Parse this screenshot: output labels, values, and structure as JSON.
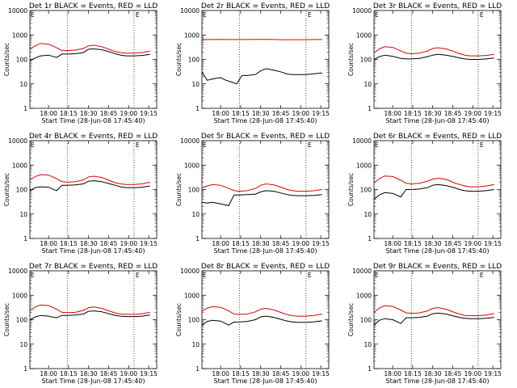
{
  "start_time_label": "Start Time (28-Jun-08 17:45:40)",
  "ylabel": "Counts/sec",
  "x_ticks": [
    "18:00",
    "18:15",
    "18:30",
    "18:45",
    "19:00",
    "19:15"
  ],
  "x_ticks_note": "tick labels for time axis; minutes after start",
  "y_ticks": [
    "1",
    "10",
    "100",
    "1000",
    "10000"
  ],
  "colors": {
    "events": "#000000",
    "lld": "#dd0000"
  },
  "chart_data": [
    {
      "type": "line",
      "title": "Det 1r BLACK = Events, RED = LLD",
      "xlabel": "Start Time (28-Jun-08 17:45:40)",
      "ylabel": "Counts/sec",
      "ylim": [
        1,
        10000
      ],
      "yscale": "log",
      "x_minutes": [
        0,
        4,
        8,
        14,
        20,
        24,
        28,
        34,
        40,
        44,
        48,
        54,
        60,
        64,
        68,
        72,
        78,
        84,
        90
      ],
      "series": [
        {
          "name": "BLACK = Events",
          "values": [
            90,
            115,
            140,
            150,
            120,
            165,
            165,
            170,
            190,
            260,
            270,
            250,
            200,
            170,
            150,
            140,
            140,
            145,
            160
          ]
        },
        {
          "name": "RED = LLD",
          "values": [
            260,
            360,
            450,
            420,
            300,
            230,
            230,
            240,
            280,
            360,
            380,
            330,
            250,
            210,
            190,
            180,
            180,
            190,
            220
          ]
        }
      ]
    },
    {
      "type": "line",
      "title": "Det 2r BLACK = Events, RED = LLD",
      "xlabel": "Start Time (28-Jun-08 17:45:40)",
      "ylabel": "Counts/sec",
      "ylim": [
        1,
        10000
      ],
      "yscale": "log",
      "x_minutes": [
        0,
        4,
        8,
        14,
        18,
        22,
        26,
        30,
        34,
        40,
        44,
        48,
        54,
        60,
        64,
        68,
        72,
        78,
        84,
        90
      ],
      "series": [
        {
          "name": "BLACK = Events",
          "values": [
            30,
            14,
            16,
            18,
            14,
            12,
            10,
            22,
            22,
            24,
            34,
            42,
            36,
            30,
            25,
            24,
            24,
            24,
            26,
            28
          ]
        },
        {
          "name": "RED = LLD",
          "values": [
            640,
            650,
            650,
            660,
            650,
            650,
            650,
            650,
            650,
            660,
            660,
            660,
            650,
            640,
            640,
            640,
            640,
            640,
            650,
            650
          ]
        }
      ]
    },
    {
      "type": "line",
      "title": "Det 3r BLACK = Events, RED = LLD",
      "xlabel": "Start Time (28-Jun-08 17:45:40)",
      "ylabel": "Counts/sec",
      "ylim": [
        1,
        10000
      ],
      "yscale": "log",
      "x_minutes": [
        0,
        4,
        8,
        14,
        20,
        24,
        28,
        34,
        40,
        44,
        48,
        54,
        60,
        64,
        68,
        72,
        78,
        84,
        90
      ],
      "series": [
        {
          "name": "BLACK = Events",
          "values": [
            100,
            130,
            150,
            135,
            110,
            105,
            105,
            110,
            130,
            150,
            160,
            150,
            130,
            115,
            105,
            100,
            100,
            105,
            115
          ]
        },
        {
          "name": "RED = LLD",
          "values": [
            190,
            270,
            330,
            310,
            220,
            180,
            170,
            180,
            220,
            280,
            300,
            270,
            210,
            170,
            150,
            140,
            140,
            145,
            160
          ]
        }
      ]
    },
    {
      "type": "line",
      "title": "Det 4r BLACK = Events, RED = LLD",
      "xlabel": "Start Time (28-Jun-08 17:45:40)",
      "ylabel": "Counts/sec",
      "ylim": [
        1,
        10000
      ],
      "yscale": "log",
      "x_minutes": [
        0,
        4,
        8,
        14,
        20,
        24,
        28,
        34,
        40,
        44,
        48,
        54,
        60,
        64,
        68,
        72,
        78,
        84,
        90
      ],
      "series": [
        {
          "name": "BLACK = Events",
          "values": [
            90,
            120,
            130,
            125,
            90,
            150,
            150,
            155,
            170,
            220,
            230,
            210,
            170,
            150,
            130,
            120,
            120,
            125,
            140
          ]
        },
        {
          "name": "RED = LLD",
          "values": [
            240,
            340,
            410,
            390,
            280,
            210,
            200,
            210,
            250,
            330,
            350,
            310,
            230,
            190,
            170,
            160,
            160,
            170,
            200
          ]
        }
      ]
    },
    {
      "type": "line",
      "title": "Det 5r BLACK = Events, RED = LLD",
      "xlabel": "Start Time (28-Jun-08 17:45:40)",
      "ylabel": "Counts/sec",
      "ylim": [
        1,
        10000
      ],
      "yscale": "log",
      "x_minutes": [
        0,
        4,
        8,
        14,
        20,
        24,
        28,
        34,
        40,
        44,
        48,
        54,
        60,
        64,
        68,
        72,
        78,
        84,
        90
      ],
      "series": [
        {
          "name": "BLACK = Events",
          "values": [
            30,
            28,
            30,
            26,
            22,
            60,
            60,
            62,
            65,
            80,
            90,
            85,
            70,
            62,
            58,
            56,
            56,
            58,
            62
          ]
        },
        {
          "name": "RED = LLD",
          "values": [
            120,
            140,
            160,
            150,
            110,
            90,
            85,
            90,
            110,
            150,
            170,
            155,
            120,
            100,
            90,
            85,
            85,
            90,
            100
          ]
        }
      ]
    },
    {
      "type": "line",
      "title": "Det 6r BLACK = Events, RED = LLD",
      "xlabel": "Start Time (28-Jun-08 17:45:40)",
      "ylabel": "Counts/sec",
      "ylim": [
        1,
        10000
      ],
      "yscale": "log",
      "x_minutes": [
        0,
        4,
        8,
        14,
        20,
        24,
        28,
        34,
        40,
        44,
        48,
        54,
        60,
        64,
        68,
        72,
        78,
        84,
        90
      ],
      "series": [
        {
          "name": "BLACK = Events",
          "values": [
            40,
            60,
            75,
            70,
            50,
            100,
            100,
            105,
            120,
            150,
            160,
            145,
            120,
            100,
            90,
            85,
            85,
            90,
            100
          ]
        },
        {
          "name": "RED = LLD",
          "values": [
            190,
            280,
            360,
            340,
            240,
            180,
            170,
            180,
            220,
            270,
            290,
            260,
            190,
            160,
            140,
            130,
            130,
            140,
            160
          ]
        }
      ]
    },
    {
      "type": "line",
      "title": "Det 7r BLACK = Events, RED = LLD",
      "xlabel": "Start Time (28-Jun-08 17:45:40)",
      "ylabel": "Counts/sec",
      "ylim": [
        1,
        10000
      ],
      "yscale": "log",
      "x_minutes": [
        0,
        4,
        8,
        14,
        20,
        24,
        28,
        34,
        40,
        44,
        48,
        54,
        60,
        64,
        68,
        72,
        78,
        84,
        90
      ],
      "series": [
        {
          "name": "BLACK = Events",
          "values": [
            100,
            130,
            150,
            140,
            120,
            150,
            150,
            155,
            170,
            220,
            230,
            210,
            170,
            150,
            140,
            135,
            135,
            140,
            155
          ]
        },
        {
          "name": "RED = LLD",
          "values": [
            230,
            330,
            400,
            380,
            270,
            200,
            195,
            200,
            240,
            310,
            330,
            290,
            220,
            190,
            170,
            165,
            165,
            175,
            200
          ]
        }
      ]
    },
    {
      "type": "line",
      "title": "Det 8r BLACK = Events, RED = LLD",
      "xlabel": "Start Time (28-Jun-08 17:45:40)",
      "ylabel": "Counts/sec",
      "ylim": [
        1,
        10000
      ],
      "yscale": "log",
      "x_minutes": [
        0,
        4,
        8,
        14,
        20,
        24,
        28,
        34,
        40,
        44,
        48,
        54,
        60,
        64,
        68,
        72,
        78,
        84,
        90
      ],
      "series": [
        {
          "name": "BLACK = Events",
          "values": [
            60,
            85,
            95,
            88,
            60,
            80,
            80,
            85,
            100,
            130,
            140,
            125,
            100,
            88,
            80,
            78,
            78,
            82,
            90
          ]
        },
        {
          "name": "RED = LLD",
          "values": [
            220,
            300,
            340,
            320,
            230,
            170,
            165,
            170,
            210,
            270,
            290,
            250,
            190,
            160,
            145,
            140,
            140,
            150,
            170
          ]
        }
      ]
    },
    {
      "type": "line",
      "title": "Det 9r BLACK = Events, RED = LLD",
      "xlabel": "Start Time (28-Jun-08 17:45:40)",
      "ylabel": "Counts/sec",
      "ylim": [
        1,
        10000
      ],
      "yscale": "log",
      "x_minutes": [
        0,
        4,
        8,
        14,
        20,
        24,
        28,
        34,
        40,
        44,
        48,
        54,
        60,
        64,
        68,
        72,
        78,
        84,
        90
      ],
      "series": [
        {
          "name": "BLACK = Events",
          "values": [
            60,
            95,
            110,
            100,
            70,
            120,
            120,
            125,
            140,
            175,
            185,
            170,
            140,
            125,
            115,
            110,
            110,
            115,
            125
          ]
        },
        {
          "name": "RED = LLD",
          "values": [
            200,
            300,
            370,
            350,
            250,
            190,
            180,
            190,
            230,
            290,
            310,
            270,
            200,
            170,
            150,
            145,
            145,
            155,
            180
          ]
        }
      ]
    }
  ]
}
